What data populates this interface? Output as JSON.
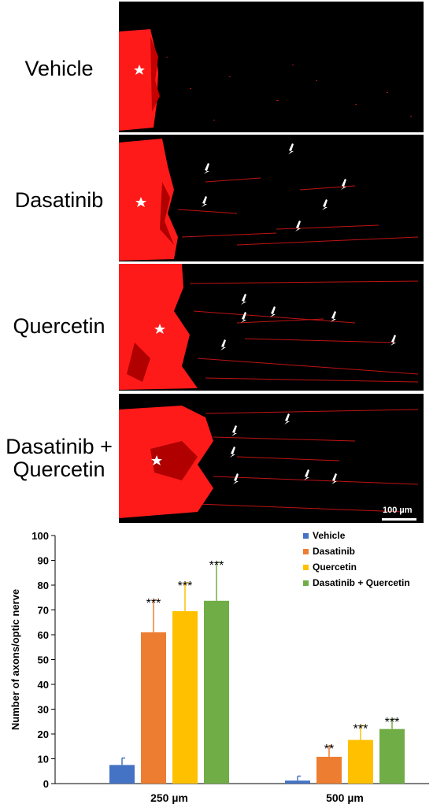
{
  "panels": [
    {
      "label": "Vehicle"
    },
    {
      "label": "Dasatinib"
    },
    {
      "label": "Quercetin"
    },
    {
      "label_line1": "Dasatinib +",
      "label_line2": "Quercetin"
    }
  ],
  "scale_bar": "100 µm",
  "colors": {
    "vehicle": "#4472C4",
    "dasatinib": "#ED7D31",
    "quercetin": "#FFC000",
    "combo": "#70AD47",
    "stain": "#ff1a1a"
  },
  "chart_data": {
    "type": "bar",
    "ylabel": "Number of axons/optic nerve",
    "ylim": [
      0,
      100
    ],
    "yticks": [
      0,
      10,
      20,
      30,
      40,
      50,
      60,
      70,
      80,
      90,
      100
    ],
    "categories": [
      "250 µm",
      "500 µm"
    ],
    "legend_position": "top-right",
    "series": [
      {
        "name": "Vehicle",
        "values": [
          7.5,
          1.2
        ],
        "errors": [
          2.8,
          1.8
        ],
        "sig": [
          "",
          ""
        ]
      },
      {
        "name": "Dasatinib",
        "values": [
          61,
          10.8
        ],
        "errors": [
          13,
          4.5
        ],
        "sig": [
          "***",
          "**"
        ]
      },
      {
        "name": "Quercetin",
        "values": [
          69.5,
          17.6
        ],
        "errors": [
          11.5,
          5.8
        ],
        "sig": [
          "***",
          "***"
        ]
      },
      {
        "name": "Dasatinib + Quercetin",
        "values": [
          73.7,
          22
        ],
        "errors": [
          15.5,
          4
        ],
        "sig": [
          "***",
          "***"
        ]
      }
    ]
  }
}
